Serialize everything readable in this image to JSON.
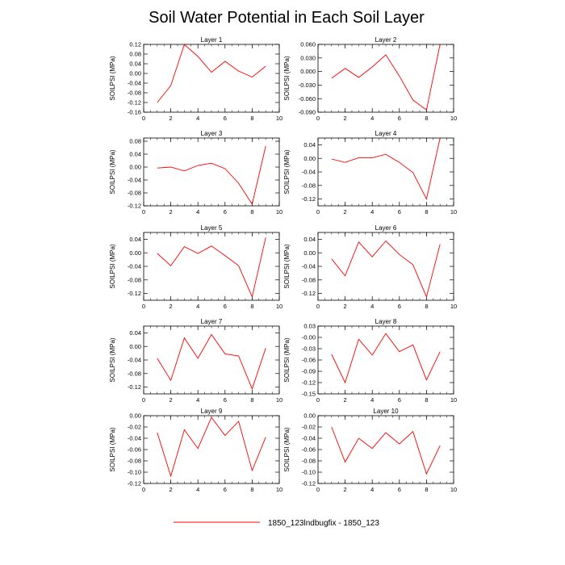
{
  "figure": {
    "title": "Soil Water Potential in Each Soil Layer",
    "legend_label": "1850_123lndbugfix - 1850_123",
    "line_color": "#ff0000",
    "axis_color": "#000000"
  },
  "chart_data": [
    {
      "type": "line",
      "title": "Layer 1",
      "xlabel": "",
      "ylabel": "SOILPSI  (MPa)",
      "xlim": [
        0,
        10
      ],
      "xticks": [
        0,
        2,
        4,
        6,
        8,
        10
      ],
      "ylim": [
        -0.16,
        0.12
      ],
      "yticks": [
        "0.12",
        "0.08",
        "0.04",
        "0.00",
        "-0.04",
        "-0.08",
        "-0.12",
        "-0.16"
      ],
      "x": [
        1,
        2,
        3,
        4,
        5,
        6,
        7,
        8,
        9
      ],
      "series": [
        {
          "name": "1850_123lndbugfix - 1850_123",
          "values": [
            -0.12,
            -0.05,
            0.12,
            0.07,
            0.005,
            0.05,
            0.01,
            -0.015,
            0.03
          ]
        }
      ]
    },
    {
      "type": "line",
      "title": "Layer 2",
      "xlabel": "",
      "ylabel": "SOILPSI  (MPa)",
      "xlim": [
        0,
        10
      ],
      "xticks": [
        0,
        2,
        4,
        6,
        8,
        10
      ],
      "ylim": [
        -0.09,
        0.06
      ],
      "yticks": [
        "0.060",
        "0.030",
        "0.000",
        "-0.030",
        "-0.060",
        "-0.090"
      ],
      "x": [
        1,
        2,
        3,
        4,
        5,
        6,
        7,
        8,
        9
      ],
      "series": [
        {
          "name": "1850_123lndbugfix - 1850_123",
          "values": [
            -0.015,
            0.007,
            -0.013,
            0.01,
            0.037,
            -0.01,
            -0.063,
            -0.085,
            0.06
          ]
        }
      ]
    },
    {
      "type": "line",
      "title": "Layer 3",
      "xlabel": "",
      "ylabel": "SOILPSI  (MPa)",
      "xlim": [
        0,
        10
      ],
      "xticks": [
        0,
        2,
        4,
        6,
        8,
        10
      ],
      "ylim": [
        -0.12,
        0.09
      ],
      "yticks": [
        "0.08",
        "0.04",
        "0.00",
        "-0.04",
        "-0.08",
        "-0.12"
      ],
      "x": [
        1,
        2,
        3,
        4,
        5,
        6,
        7,
        8,
        9
      ],
      "series": [
        {
          "name": "1850_123lndbugfix - 1850_123",
          "values": [
            -0.003,
            0.0,
            -0.012,
            0.005,
            0.012,
            -0.005,
            -0.05,
            -0.115,
            0.065
          ]
        }
      ]
    },
    {
      "type": "line",
      "title": "Layer 4",
      "xlabel": "",
      "ylabel": "SOILPSI  (MPa)",
      "xlim": [
        0,
        10
      ],
      "xticks": [
        0,
        2,
        4,
        6,
        8,
        10
      ],
      "ylim": [
        -0.14,
        0.06
      ],
      "yticks": [
        "0.04",
        "0.00",
        "-0.04",
        "-0.08",
        "-0.12"
      ],
      "x": [
        1,
        2,
        3,
        4,
        5,
        6,
        7,
        8,
        9
      ],
      "series": [
        {
          "name": "1850_123lndbugfix - 1850_123",
          "values": [
            -0.002,
            -0.012,
            0.002,
            0.002,
            0.012,
            -0.012,
            -0.042,
            -0.12,
            0.06
          ]
        }
      ]
    },
    {
      "type": "line",
      "title": "Layer 5",
      "xlabel": "",
      "ylabel": "SOILPSI  (MPa)",
      "xlim": [
        0,
        10
      ],
      "xticks": [
        0,
        2,
        4,
        6,
        8,
        10
      ],
      "ylim": [
        -0.14,
        0.06
      ],
      "yticks": [
        "0.04",
        "0.00",
        "-0.04",
        "-0.08",
        "-0.12"
      ],
      "x": [
        1,
        2,
        3,
        4,
        5,
        6,
        7,
        8,
        9
      ],
      "series": [
        {
          "name": "1850_123lndbugfix - 1850_123",
          "values": [
            -0.002,
            -0.038,
            0.018,
            -0.002,
            0.02,
            -0.008,
            -0.038,
            -0.13,
            0.045
          ]
        }
      ]
    },
    {
      "type": "line",
      "title": "Layer 6",
      "xlabel": "",
      "ylabel": "SOILPSI  (MPa)",
      "xlim": [
        0,
        10
      ],
      "xticks": [
        0,
        2,
        4,
        6,
        8,
        10
      ],
      "ylim": [
        -0.14,
        0.06
      ],
      "yticks": [
        "0.04",
        "0.00",
        "-0.04",
        "-0.08",
        "-0.12"
      ],
      "x": [
        1,
        2,
        3,
        4,
        5,
        6,
        7,
        8,
        9
      ],
      "series": [
        {
          "name": "1850_123lndbugfix - 1850_123",
          "values": [
            -0.018,
            -0.068,
            0.032,
            -0.012,
            0.035,
            -0.005,
            -0.035,
            -0.13,
            0.025
          ]
        }
      ]
    },
    {
      "type": "line",
      "title": "Layer 7",
      "xlabel": "",
      "ylabel": "SOILPSI  (MPa)",
      "xlim": [
        0,
        10
      ],
      "xticks": [
        0,
        2,
        4,
        6,
        8,
        10
      ],
      "ylim": [
        -0.14,
        0.06
      ],
      "yticks": [
        "0.04",
        "0.00",
        "-0.04",
        "-0.08",
        "-0.12"
      ],
      "x": [
        1,
        2,
        3,
        4,
        5,
        6,
        7,
        8,
        9
      ],
      "series": [
        {
          "name": "1850_123lndbugfix - 1850_123",
          "values": [
            -0.035,
            -0.1,
            0.025,
            -0.035,
            0.035,
            -0.022,
            -0.028,
            -0.125,
            -0.005
          ]
        }
      ]
    },
    {
      "type": "line",
      "title": "Layer 8",
      "xlabel": "",
      "ylabel": "SOILPSI  (MPa)",
      "xlim": [
        0,
        10
      ],
      "xticks": [
        0,
        2,
        4,
        6,
        8,
        10
      ],
      "ylim": [
        -0.15,
        0.03
      ],
      "yticks": [
        "0.03",
        "-0.00",
        "-0.03",
        "-0.06",
        "-0.09",
        "-0.12",
        "-0.15"
      ],
      "x": [
        1,
        2,
        3,
        4,
        5,
        6,
        7,
        8,
        9
      ],
      "series": [
        {
          "name": "1850_123lndbugfix - 1850_123",
          "values": [
            -0.045,
            -0.12,
            -0.005,
            -0.047,
            0.01,
            -0.038,
            -0.02,
            -0.113,
            -0.038
          ]
        }
      ]
    },
    {
      "type": "line",
      "title": "Layer 9",
      "xlabel": "",
      "ylabel": "SOILPSI  (MPa)",
      "xlim": [
        0,
        10
      ],
      "xticks": [
        0,
        2,
        4,
        6,
        8,
        10
      ],
      "ylim": [
        -0.12,
        0.0
      ],
      "yticks": [
        "0.00",
        "-0.02",
        "-0.04",
        "-0.06",
        "-0.08",
        "-0.10",
        "-0.12"
      ],
      "x": [
        1,
        2,
        3,
        4,
        5,
        6,
        7,
        8,
        9
      ],
      "series": [
        {
          "name": "1850_123lndbugfix - 1850_123",
          "values": [
            -0.03,
            -0.107,
            -0.025,
            -0.058,
            -0.003,
            -0.035,
            -0.01,
            -0.097,
            -0.038
          ]
        }
      ]
    },
    {
      "type": "line",
      "title": "Layer 10",
      "xlabel": "",
      "ylabel": "SOILPSI  (MPa)",
      "xlim": [
        0,
        10
      ],
      "xticks": [
        0,
        2,
        4,
        6,
        8,
        10
      ],
      "ylim": [
        -0.12,
        0.0
      ],
      "yticks": [
        "0.00",
        "-0.02",
        "-0.04",
        "-0.06",
        "-0.08",
        "-0.10",
        "-0.12"
      ],
      "x": [
        1,
        2,
        3,
        4,
        5,
        6,
        7,
        8,
        9
      ],
      "series": [
        {
          "name": "1850_123lndbugfix - 1850_123",
          "values": [
            -0.02,
            -0.082,
            -0.04,
            -0.058,
            -0.03,
            -0.05,
            -0.028,
            -0.103,
            -0.053
          ]
        }
      ]
    }
  ]
}
